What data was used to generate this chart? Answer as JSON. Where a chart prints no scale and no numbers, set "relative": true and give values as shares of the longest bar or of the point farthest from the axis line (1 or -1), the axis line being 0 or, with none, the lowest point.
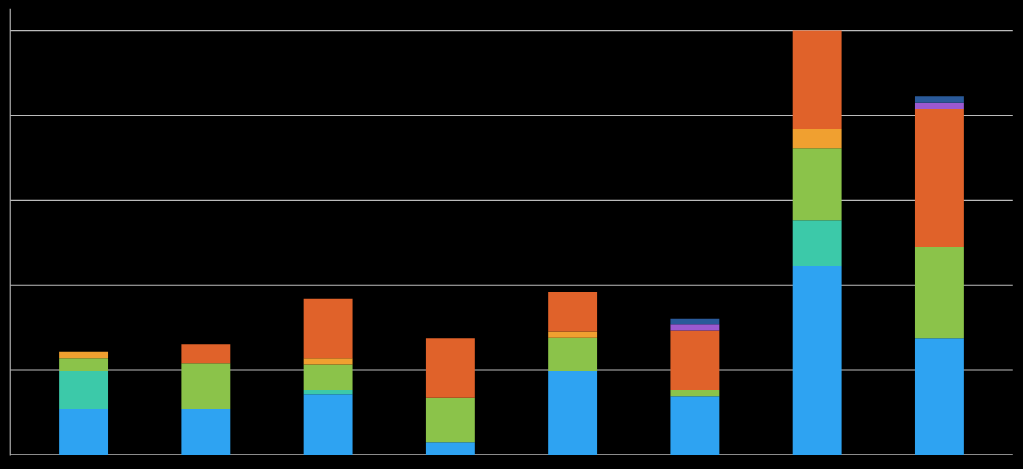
{
  "chart_data": {
    "type": "bar",
    "stacked": true,
    "relative": true,
    "grid": "y",
    "categories": [
      null,
      null,
      null,
      null,
      null,
      null,
      null,
      null
    ],
    "series": [
      {
        "color": "#2ea3f2",
        "values": [
          0.108,
          0.108,
          0.143,
          0.03,
          0.198,
          0.138,
          0.445,
          0.275
        ]
      },
      {
        "color": "#3cc9a9",
        "values": [
          0.09,
          null,
          0.01,
          null,
          null,
          null,
          0.108,
          null
        ]
      },
      {
        "color": "#8bc34a",
        "values": [
          0.03,
          0.108,
          0.06,
          0.105,
          0.078,
          0.015,
          0.17,
          0.215
        ]
      },
      {
        "color": "#f0a030",
        "values": [
          0.015,
          null,
          0.015,
          null,
          0.015,
          null,
          0.045,
          null
        ]
      },
      {
        "color": "#e0622a",
        "values": [
          null,
          0.045,
          0.14,
          0.14,
          0.093,
          0.14,
          0.232,
          0.325
        ]
      },
      {
        "color": "#9b59d0",
        "values": [
          null,
          null,
          null,
          null,
          null,
          0.015,
          null,
          0.015
        ]
      },
      {
        "color": "#2a5a9a",
        "values": [
          null,
          null,
          null,
          null,
          null,
          0.013,
          null,
          0.015
        ]
      }
    ]
  }
}
